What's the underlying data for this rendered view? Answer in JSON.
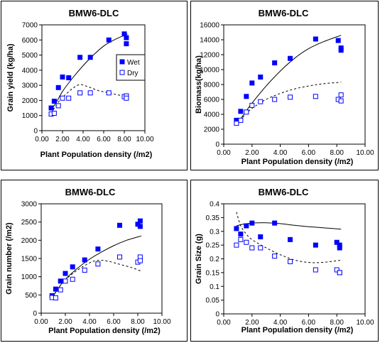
{
  "chart_data": [
    {
      "type": "scatter",
      "title": "BMW6-DLC",
      "xlabel": "Plant Population density (/m2)",
      "ylabel": "Grain yield (kg/ha)",
      "xlim": [
        0,
        10
      ],
      "ylim": [
        0,
        7000
      ],
      "xticks": [
        "0.00",
        "2.00",
        "4.00",
        "6.00",
        "8.00",
        "10.00"
      ],
      "yticks": [
        "0",
        "1000",
        "2000",
        "3000",
        "4000",
        "5000",
        "6000",
        "7000"
      ],
      "legend": {
        "position": "inside-right",
        "entries": [
          "Wet",
          "Dry"
        ]
      },
      "series": [
        {
          "name": "Wet",
          "marker": "filled-square",
          "color": "#0000ff",
          "points": [
            [
              0.9,
              1500
            ],
            [
              1.2,
              1950
            ],
            [
              1.6,
              2850
            ],
            [
              2.0,
              3550
            ],
            [
              2.6,
              3500
            ],
            [
              3.7,
              4850
            ],
            [
              4.7,
              4850
            ],
            [
              6.5,
              6000
            ],
            [
              8.0,
              6400
            ],
            [
              8.2,
              6150
            ],
            [
              8.2,
              5750
            ]
          ]
        },
        {
          "name": "Dry",
          "marker": "open-square",
          "color": "#0000ff",
          "points": [
            [
              0.9,
              1100
            ],
            [
              1.2,
              1150
            ],
            [
              1.6,
              1650
            ],
            [
              2.0,
              2150
            ],
            [
              2.6,
              2150
            ],
            [
              3.7,
              2500
            ],
            [
              4.7,
              2500
            ],
            [
              6.5,
              2500
            ],
            [
              8.0,
              2250
            ],
            [
              8.2,
              2300
            ],
            [
              8.2,
              2150
            ]
          ]
        }
      ],
      "fits": [
        {
          "series": "Wet",
          "style": "solid",
          "points": [
            [
              0.9,
              1350
            ],
            [
              1.5,
              2000
            ],
            [
              2.0,
              2600
            ],
            [
              3.0,
              3500
            ],
            [
              4.0,
              4300
            ],
            [
              5.0,
              5000
            ],
            [
              6.0,
              5600
            ],
            [
              7.0,
              6000
            ],
            [
              8.3,
              6400
            ]
          ]
        },
        {
          "series": "Dry",
          "style": "dashed",
          "points": [
            [
              0.9,
              1150
            ],
            [
              1.5,
              1800
            ],
            [
              2.0,
              2200
            ],
            [
              3.0,
              2800
            ],
            [
              3.7,
              3050
            ],
            [
              4.5,
              2900
            ],
            [
              5.5,
              2650
            ],
            [
              6.5,
              2500
            ],
            [
              7.5,
              2350
            ],
            [
              8.3,
              2250
            ]
          ]
        }
      ]
    },
    {
      "type": "scatter",
      "title": "BMW6-DLC",
      "xlabel": "Plant Population density (/m2)",
      "ylabel": "Biomass(kg/ha)",
      "xlim": [
        0,
        10
      ],
      "ylim": [
        0,
        16000
      ],
      "xticks": [
        "0.00",
        "2.00",
        "4.00",
        "6.00",
        "8.00",
        "10.00"
      ],
      "yticks": [
        "0",
        "2000",
        "4000",
        "6000",
        "8000",
        "10000",
        "12000",
        "14000",
        "16000"
      ],
      "series": [
        {
          "name": "Wet",
          "marker": "filled-square",
          "color": "#0000ff",
          "points": [
            [
              0.9,
              3200
            ],
            [
              1.2,
              4400
            ],
            [
              1.6,
              6400
            ],
            [
              2.0,
              8200
            ],
            [
              2.6,
              9000
            ],
            [
              3.6,
              10900
            ],
            [
              4.7,
              11500
            ],
            [
              6.5,
              14100
            ],
            [
              8.1,
              13900
            ],
            [
              8.3,
              12900
            ],
            [
              8.3,
              12600
            ]
          ]
        },
        {
          "name": "Dry",
          "marker": "open-square",
          "color": "#0000ff",
          "points": [
            [
              0.9,
              2800
            ],
            [
              1.2,
              3200
            ],
            [
              1.6,
              4300
            ],
            [
              2.0,
              5200
            ],
            [
              2.6,
              5700
            ],
            [
              3.6,
              6000
            ],
            [
              4.7,
              6300
            ],
            [
              6.5,
              6400
            ],
            [
              8.1,
              6000
            ],
            [
              8.3,
              6600
            ],
            [
              8.3,
              5800
            ]
          ]
        }
      ],
      "fits": [
        {
          "series": "Wet",
          "style": "solid",
          "points": [
            [
              0.9,
              2600
            ],
            [
              1.5,
              4200
            ],
            [
              2.0,
              5500
            ],
            [
              3.0,
              7800
            ],
            [
              4.0,
              9800
            ],
            [
              5.0,
              11500
            ],
            [
              6.0,
              12800
            ],
            [
              7.0,
              13700
            ],
            [
              8.3,
              14600
            ]
          ]
        },
        {
          "series": "Dry",
          "style": "dashed",
          "points": [
            [
              0.9,
              2800
            ],
            [
              1.5,
              3900
            ],
            [
              2.0,
              4800
            ],
            [
              3.0,
              6000
            ],
            [
              4.0,
              6800
            ],
            [
              5.0,
              7400
            ],
            [
              6.0,
              7800
            ],
            [
              7.0,
              8100
            ],
            [
              8.3,
              8300
            ]
          ]
        }
      ]
    },
    {
      "type": "scatter",
      "title": "BMW6-DLC",
      "xlabel": "Plant Population density (/m2)",
      "ylabel": "Grain number (/m2)",
      "xlim": [
        0,
        10
      ],
      "ylim": [
        0,
        3000
      ],
      "xticks": [
        "0.00",
        "2.00",
        "4.00",
        "6.00",
        "8.00",
        "10.00"
      ],
      "yticks": [
        "0",
        "500",
        "1000",
        "1500",
        "2000",
        "2500",
        "3000"
      ],
      "series": [
        {
          "name": "Wet",
          "marker": "filled-square",
          "color": "#0000ff",
          "points": [
            [
              0.9,
              480
            ],
            [
              1.2,
              660
            ],
            [
              1.6,
              880
            ],
            [
              2.0,
              1090
            ],
            [
              2.6,
              1270
            ],
            [
              3.6,
              1460
            ],
            [
              4.7,
              1760
            ],
            [
              6.5,
              2410
            ],
            [
              8.0,
              2440
            ],
            [
              8.2,
              2530
            ],
            [
              8.2,
              2380
            ]
          ]
        },
        {
          "name": "Dry",
          "marker": "open-square",
          "color": "#0000ff",
          "points": [
            [
              0.9,
              430
            ],
            [
              1.2,
              420
            ],
            [
              1.6,
              640
            ],
            [
              2.0,
              880
            ],
            [
              2.6,
              930
            ],
            [
              3.6,
              1180
            ],
            [
              4.7,
              1350
            ],
            [
              6.5,
              1540
            ],
            [
              8.0,
              1400
            ],
            [
              8.2,
              1540
            ],
            [
              8.2,
              1440
            ]
          ]
        }
      ],
      "fits": [
        {
          "series": "Wet",
          "style": "solid",
          "points": [
            [
              0.9,
              420
            ],
            [
              1.5,
              720
            ],
            [
              2.0,
              930
            ],
            [
              3.0,
              1230
            ],
            [
              4.0,
              1480
            ],
            [
              5.0,
              1680
            ],
            [
              6.0,
              1850
            ],
            [
              7.0,
              1990
            ],
            [
              8.3,
              2120
            ]
          ]
        },
        {
          "series": "Dry",
          "style": "dashed",
          "points": [
            [
              0.9,
              430
            ],
            [
              1.5,
              720
            ],
            [
              2.0,
              920
            ],
            [
              3.0,
              1180
            ],
            [
              4.0,
              1380
            ],
            [
              4.7,
              1450
            ],
            [
              5.5,
              1430
            ],
            [
              6.5,
              1340
            ],
            [
              7.5,
              1250
            ],
            [
              8.3,
              1150
            ]
          ]
        }
      ]
    },
    {
      "type": "scatter",
      "title": "BMW6-DLC",
      "xlabel": "Plant Population density (/m2)",
      "ylabel": "Grain Size (g)",
      "xlim": [
        0,
        10
      ],
      "ylim": [
        0,
        0.4
      ],
      "xticks": [
        "0.00",
        "2.00",
        "4.00",
        "6.00",
        "8.00",
        "10.00"
      ],
      "yticks": [
        "0",
        "0.05",
        "0.1",
        "0.15",
        "0.2",
        "0.25",
        "0.3",
        "0.35",
        "0.4"
      ],
      "series": [
        {
          "name": "Wet",
          "marker": "filled-square",
          "color": "#0000ff",
          "points": [
            [
              0.9,
              0.31
            ],
            [
              1.2,
              0.29
            ],
            [
              1.6,
              0.32
            ],
            [
              2.0,
              0.33
            ],
            [
              2.6,
              0.28
            ],
            [
              3.6,
              0.33
            ],
            [
              4.7,
              0.27
            ],
            [
              6.5,
              0.25
            ],
            [
              8.0,
              0.26
            ],
            [
              8.2,
              0.25
            ],
            [
              8.2,
              0.24
            ]
          ]
        },
        {
          "name": "Dry",
          "marker": "open-square",
          "color": "#0000ff",
          "points": [
            [
              0.9,
              0.25
            ],
            [
              1.2,
              0.27
            ],
            [
              1.6,
              0.26
            ],
            [
              2.0,
              0.24
            ],
            [
              2.6,
              0.24
            ],
            [
              3.6,
              0.21
            ],
            [
              4.7,
              0.19
            ],
            [
              6.5,
              0.16
            ],
            [
              8.0,
              0.16
            ],
            [
              8.2,
              0.15
            ],
            [
              8.2,
              0.15
            ]
          ]
        }
      ],
      "fits": [
        {
          "series": "Wet",
          "style": "solid",
          "points": [
            [
              0.9,
              0.32
            ],
            [
              1.5,
              0.327
            ],
            [
              2.0,
              0.33
            ],
            [
              3.0,
              0.331
            ],
            [
              4.0,
              0.328
            ],
            [
              5.0,
              0.322
            ],
            [
              6.0,
              0.317
            ],
            [
              7.0,
              0.313
            ],
            [
              8.3,
              0.308
            ]
          ]
        },
        {
          "series": "Dry",
          "style": "dashed",
          "points": [
            [
              0.9,
              0.37
            ],
            [
              1.2,
              0.32
            ],
            [
              1.6,
              0.29
            ],
            [
              2.0,
              0.27
            ],
            [
              3.0,
              0.24
            ],
            [
              4.0,
              0.215
            ],
            [
              5.0,
              0.196
            ],
            [
              6.0,
              0.187
            ],
            [
              7.0,
              0.187
            ],
            [
              8.3,
              0.195
            ]
          ]
        }
      ]
    }
  ]
}
